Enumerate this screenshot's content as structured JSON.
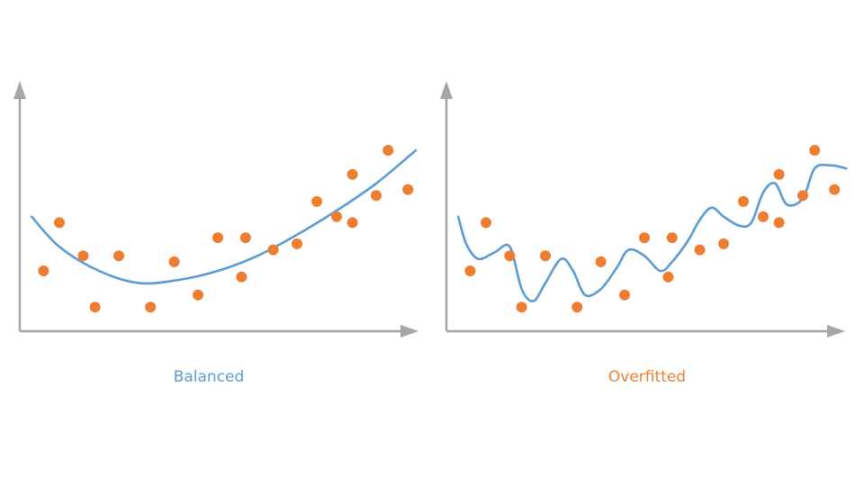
{
  "colors": {
    "axis": "#a6a6a6",
    "balanced": "#5b9bd5",
    "overfitted": "#ed7d31",
    "points": "#ed7d31"
  },
  "chart_data": [
    {
      "type": "scatter",
      "title": "Balanced",
      "xlabel": "",
      "ylabel": "",
      "xlim": [
        0,
        100
      ],
      "ylim": [
        0,
        100
      ],
      "axis_ticks": false,
      "grid": false,
      "legend": "none",
      "points": [
        {
          "x": 6,
          "y": 20
        },
        {
          "x": 10,
          "y": 36
        },
        {
          "x": 16,
          "y": 25
        },
        {
          "x": 19,
          "y": 8
        },
        {
          "x": 25,
          "y": 25
        },
        {
          "x": 33,
          "y": 8
        },
        {
          "x": 39,
          "y": 23
        },
        {
          "x": 45,
          "y": 12
        },
        {
          "x": 50,
          "y": 31
        },
        {
          "x": 56,
          "y": 18
        },
        {
          "x": 57,
          "y": 31
        },
        {
          "x": 64,
          "y": 27
        },
        {
          "x": 70,
          "y": 29
        },
        {
          "x": 75,
          "y": 43
        },
        {
          "x": 80,
          "y": 38
        },
        {
          "x": 84,
          "y": 52
        },
        {
          "x": 84,
          "y": 36
        },
        {
          "x": 90,
          "y": 45
        },
        {
          "x": 93,
          "y": 60
        },
        {
          "x": 98,
          "y": 47
        }
      ],
      "fit": {
        "style": "smooth quadratic",
        "x": [
          3,
          10,
          20,
          30,
          40,
          50,
          60,
          70,
          80,
          90,
          100
        ],
        "y": [
          38,
          28,
          20,
          16,
          17,
          20,
          25,
          32,
          40,
          49,
          60
        ]
      }
    },
    {
      "type": "scatter",
      "title": "Overfitted",
      "xlabel": "",
      "ylabel": "",
      "xlim": [
        0,
        100
      ],
      "ylim": [
        0,
        100
      ],
      "axis_ticks": false,
      "grid": false,
      "legend": "none",
      "points": [
        {
          "x": 6,
          "y": 20
        },
        {
          "x": 10,
          "y": 36
        },
        {
          "x": 16,
          "y": 25
        },
        {
          "x": 19,
          "y": 8
        },
        {
          "x": 25,
          "y": 25
        },
        {
          "x": 33,
          "y": 8
        },
        {
          "x": 39,
          "y": 23
        },
        {
          "x": 45,
          "y": 12
        },
        {
          "x": 50,
          "y": 31
        },
        {
          "x": 56,
          "y": 18
        },
        {
          "x": 57,
          "y": 31
        },
        {
          "x": 64,
          "y": 27
        },
        {
          "x": 70,
          "y": 29
        },
        {
          "x": 75,
          "y": 43
        },
        {
          "x": 80,
          "y": 38
        },
        {
          "x": 84,
          "y": 52
        },
        {
          "x": 84,
          "y": 36
        },
        {
          "x": 90,
          "y": 45
        },
        {
          "x": 93,
          "y": 60
        },
        {
          "x": 98,
          "y": 47
        }
      ],
      "fit": {
        "style": "wiggly through points",
        "x": [
          3,
          5,
          8,
          12,
          16,
          19,
          22,
          25,
          29,
          32,
          35,
          39,
          43,
          46,
          50,
          54,
          57,
          61,
          64,
          67,
          70,
          74,
          77,
          80,
          83,
          86,
          90,
          93,
          97,
          101
        ],
        "y": [
          38,
          29,
          24,
          26,
          28,
          14,
          10,
          16,
          24,
          20,
          12,
          14,
          21,
          27,
          25,
          20,
          23,
          30,
          37,
          41,
          38,
          35,
          36,
          46,
          49,
          42,
          44,
          54,
          55,
          54
        ]
      }
    }
  ]
}
